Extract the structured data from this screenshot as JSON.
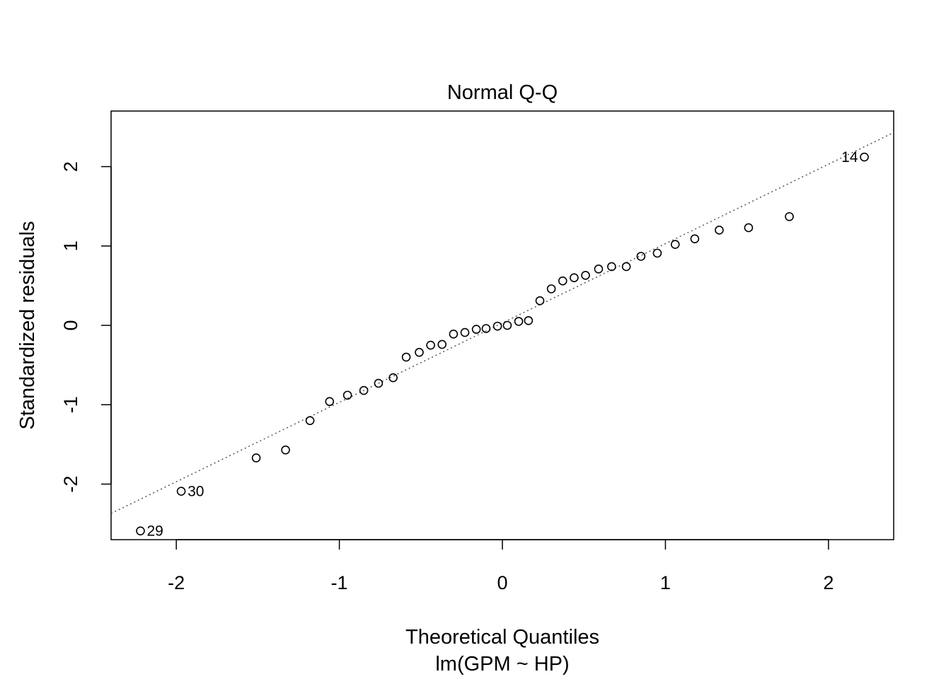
{
  "chart_data": {
    "type": "scatter",
    "title": "Normal Q-Q",
    "xlabel": "Theoretical Quantiles",
    "subtitle": "lm(GPM ~ HP)",
    "ylabel": "Standardized residuals",
    "xlim": [
      -2.4,
      2.4
    ],
    "ylim": [
      -2.7,
      2.7
    ],
    "xticks": [
      -2,
      -1,
      0,
      1,
      2
    ],
    "xtick_labels": [
      "-2",
      "-1",
      "0",
      "1",
      "2"
    ],
    "yticks": [
      -2,
      -1,
      0,
      1,
      2
    ],
    "ytick_labels": [
      "-2",
      "-1",
      "0",
      "1",
      "2"
    ],
    "grid": false,
    "reference_line": {
      "intercept": 0.03,
      "slope": 1.0,
      "style": "dotted"
    },
    "points": [
      {
        "x": -2.22,
        "y": -2.59,
        "label": "29"
      },
      {
        "x": -1.97,
        "y": -2.09,
        "label": "30"
      },
      {
        "x": -1.51,
        "y": -1.67
      },
      {
        "x": -1.33,
        "y": -1.57
      },
      {
        "x": -1.18,
        "y": -1.2
      },
      {
        "x": -1.06,
        "y": -0.96
      },
      {
        "x": -0.95,
        "y": -0.88
      },
      {
        "x": -0.85,
        "y": -0.82
      },
      {
        "x": -0.76,
        "y": -0.73
      },
      {
        "x": -0.67,
        "y": -0.66
      },
      {
        "x": -0.59,
        "y": -0.4
      },
      {
        "x": -0.51,
        "y": -0.34
      },
      {
        "x": -0.44,
        "y": -0.25
      },
      {
        "x": -0.37,
        "y": -0.24
      },
      {
        "x": -0.3,
        "y": -0.11
      },
      {
        "x": -0.23,
        "y": -0.09
      },
      {
        "x": -0.16,
        "y": -0.05
      },
      {
        "x": -0.1,
        "y": -0.04
      },
      {
        "x": -0.03,
        "y": -0.01
      },
      {
        "x": 0.03,
        "y": 0.0
      },
      {
        "x": 0.1,
        "y": 0.05
      },
      {
        "x": 0.16,
        "y": 0.06
      },
      {
        "x": 0.23,
        "y": 0.31
      },
      {
        "x": 0.3,
        "y": 0.46
      },
      {
        "x": 0.37,
        "y": 0.56
      },
      {
        "x": 0.44,
        "y": 0.6
      },
      {
        "x": 0.51,
        "y": 0.63
      },
      {
        "x": 0.59,
        "y": 0.71
      },
      {
        "x": 0.67,
        "y": 0.74
      },
      {
        "x": 0.76,
        "y": 0.74
      },
      {
        "x": 0.85,
        "y": 0.87
      },
      {
        "x": 0.95,
        "y": 0.91
      },
      {
        "x": 1.06,
        "y": 1.02
      },
      {
        "x": 1.18,
        "y": 1.09
      },
      {
        "x": 1.33,
        "y": 1.2
      },
      {
        "x": 1.51,
        "y": 1.23
      },
      {
        "x": 1.76,
        "y": 1.37
      },
      {
        "x": 2.22,
        "y": 2.12,
        "label": "14"
      }
    ]
  }
}
